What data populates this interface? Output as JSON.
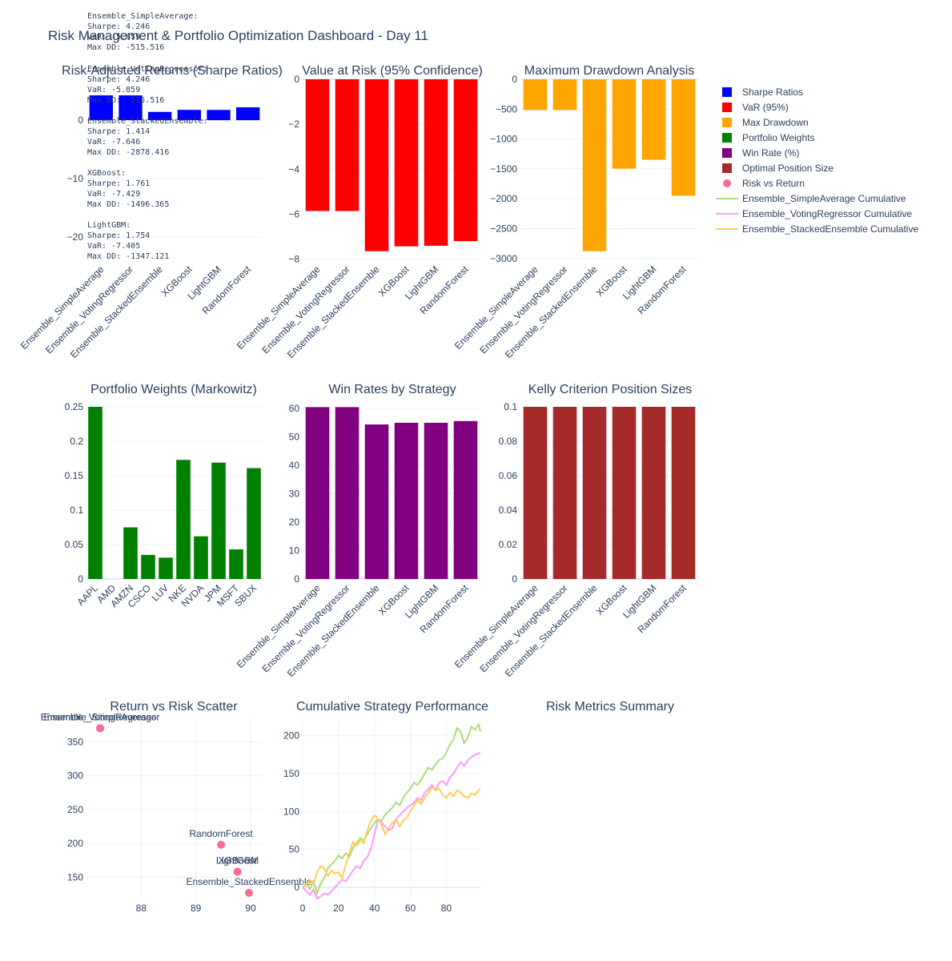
{
  "title": "Risk Management & Portfolio Optimization Dashboard - Day 11",
  "colors": {
    "sharpe": "#0000ff",
    "var": "#ff0000",
    "drawdown": "#ffa500",
    "weights": "#008000",
    "winrate": "#800080",
    "kelly": "#a52a2a",
    "scatter": "#f56e8f",
    "cum1": "#aadd77",
    "cum2": "#ff99ff",
    "cum3": "#ffcc55"
  },
  "legend": [
    {
      "label": "Sharpe Ratios",
      "kind": "box",
      "color": "#0000ff"
    },
    {
      "label": "VaR (95%)",
      "kind": "box",
      "color": "#ff0000"
    },
    {
      "label": "Max Drawdown",
      "kind": "box",
      "color": "#ffa500"
    },
    {
      "label": "Portfolio Weights",
      "kind": "box",
      "color": "#008000"
    },
    {
      "label": "Win Rate (%)",
      "kind": "box",
      "color": "#800080"
    },
    {
      "label": "Optimal Position Size",
      "kind": "box",
      "color": "#a52a2a"
    },
    {
      "label": "Risk vs Return",
      "kind": "dot",
      "color": "#f56e8f"
    },
    {
      "label": "Ensemble_SimpleAverage Cumulative",
      "kind": "line",
      "color": "#aadd77"
    },
    {
      "label": "Ensemble_VotingRegressor Cumulative",
      "kind": "line",
      "color": "#ff99ff"
    },
    {
      "label": "Ensemble_StackedEnsemble Cumulative",
      "kind": "line",
      "color": "#ffcc55"
    }
  ],
  "summary_blocks": [
    [
      "Ensemble_SimpleAverage:",
      "   Sharpe: 4.246",
      "   VaR: -5.859",
      "   Max DD: -515.516"
    ],
    [
      "Ensemble_VotingRegressor:",
      "   Sharpe: 4.246",
      "   VaR: -5.859",
      "   Max DD: -515.516"
    ],
    [
      "Ensemble_StackedEnsemble:",
      "   Sharpe: 1.414",
      "   VaR: -7.646",
      "   Max DD: -2878.416"
    ],
    [
      "XGBoost:",
      "   Sharpe: 1.761",
      "   VaR: -7.429",
      "   Max DD: -1496.365"
    ],
    [
      "LightGBM:",
      "   Sharpe: 1.754",
      "   VaR: -7.405",
      "   Max DD: -1347.121"
    ]
  ],
  "chart_data": [
    {
      "id": "sharpe",
      "type": "bar",
      "title": "Risk-Adjusted Returns (Sharpe Ratios)",
      "categories": [
        "Ensemble_SimpleAverage",
        "Ensemble_VotingRegressor",
        "Ensemble_StackedEnsemble",
        "XGBoost",
        "LightGBM",
        "RandomForest"
      ],
      "values": [
        4.246,
        4.246,
        1.414,
        1.761,
        1.754,
        2.2
      ],
      "ylim": [
        -24,
        7
      ],
      "yticks": [
        0,
        -10,
        -20
      ]
    },
    {
      "id": "var",
      "type": "bar",
      "title": "Value at Risk (95% Confidence)",
      "categories": [
        "Ensemble_SimpleAverage",
        "Ensemble_VotingRegressor",
        "Ensemble_StackedEnsemble",
        "XGBoost",
        "LightGBM",
        "RandomForest"
      ],
      "values": [
        -5.859,
        -5.859,
        -7.646,
        -7.429,
        -7.405,
        -7.2
      ],
      "ylim": [
        -8.05,
        0
      ],
      "yticks": [
        0,
        -2,
        -4,
        -6,
        -8
      ]
    },
    {
      "id": "dd",
      "type": "bar",
      "title": "Maximum Drawdown Analysis",
      "categories": [
        "Ensemble_SimpleAverage",
        "Ensemble_VotingRegressor",
        "Ensemble_StackedEnsemble",
        "XGBoost",
        "LightGBM",
        "RandomForest"
      ],
      "values": [
        -515.516,
        -515.516,
        -2878.416,
        -1496.365,
        -1347.121,
        -1950
      ],
      "ylim": [
        -3030,
        0
      ],
      "yticks": [
        0,
        -500,
        -1000,
        -1500,
        -2000,
        -2500,
        -3000
      ]
    },
    {
      "id": "weights",
      "type": "bar",
      "title": "Portfolio Weights (Markowitz)",
      "categories": [
        "AAPL",
        "AMD",
        "AMZN",
        "CSCO",
        "LUV",
        "NKE",
        "NVDA",
        "JPM",
        "MSFT",
        "SBUX"
      ],
      "values": [
        0.25,
        0.0,
        0.075,
        0.035,
        0.031,
        0.173,
        0.062,
        0.169,
        0.043,
        0.161
      ],
      "ylim": [
        0,
        0.25
      ],
      "yticks": [
        0,
        0.05,
        0.1,
        0.15,
        0.2,
        0.25
      ]
    },
    {
      "id": "winrate",
      "type": "bar",
      "title": "Win Rates by Strategy",
      "categories": [
        "Ensemble_SimpleAverage",
        "Ensemble_VotingRegressor",
        "Ensemble_StackedEnsemble",
        "XGBoost",
        "LightGBM",
        "RandomForest"
      ],
      "values": [
        60.4,
        60.4,
        54.3,
        54.9,
        54.9,
        55.5
      ],
      "ylim": [
        0,
        60.5
      ],
      "yticks": [
        0,
        10,
        20,
        30,
        40,
        50,
        60
      ]
    },
    {
      "id": "kelly",
      "type": "bar",
      "title": "Kelly Criterion Position Sizes",
      "categories": [
        "Ensemble_SimpleAverage",
        "Ensemble_VotingRegressor",
        "Ensemble_StackedEnsemble",
        "XGBoost",
        "LightGBM",
        "RandomForest"
      ],
      "values": [
        0.1,
        0.1,
        0.1,
        0.1,
        0.1,
        0.1
      ],
      "ylim": [
        0,
        0.1
      ],
      "yticks": [
        0,
        0.02,
        0.04,
        0.06,
        0.08,
        0.1
      ]
    },
    {
      "id": "scatter",
      "type": "scatter",
      "title": "Return vs Risk Scatter",
      "points": [
        {
          "label": "Ensemble_SimpleAverage",
          "x": 87.25,
          "y": 370
        },
        {
          "label": "Ensemble_VotingRegressor",
          "x": 87.25,
          "y": 370
        },
        {
          "label": "Ensemble_StackedEnsemble",
          "x": 89.97,
          "y": 127
        },
        {
          "label": "XGBoost",
          "x": 89.76,
          "y": 158
        },
        {
          "label": "LightGBM",
          "x": 89.76,
          "y": 158
        },
        {
          "label": "RandomForest",
          "x": 89.46,
          "y": 198
        }
      ],
      "xlim": [
        87.0,
        90.22
      ],
      "ylim": [
        115,
        387
      ],
      "xticks": [
        88,
        89,
        90
      ],
      "yticks": [
        150,
        200,
        250,
        300,
        350
      ]
    },
    {
      "id": "cum",
      "type": "line",
      "title": "Cumulative Strategy Performance",
      "series": [
        {
          "name": "Ensemble_SimpleAverage Cumulative",
          "color": "#aadd77",
          "x": [
            0,
            2,
            4,
            6,
            8,
            10,
            12,
            14,
            16,
            18,
            20,
            22,
            24,
            26,
            28,
            30,
            32,
            34,
            36,
            38,
            40,
            42,
            44,
            46,
            48,
            50,
            52,
            54,
            56,
            58,
            60,
            62,
            64,
            66,
            68,
            70,
            72,
            74,
            76,
            78,
            80,
            82,
            84,
            86,
            88,
            90,
            92,
            94,
            96,
            98,
            99
          ],
          "values": [
            0,
            5,
            -3,
            8,
            -8,
            5,
            12,
            25,
            30,
            35,
            42,
            38,
            45,
            40,
            52,
            58,
            65,
            62,
            70,
            78,
            85,
            90,
            88,
            96,
            100,
            105,
            112,
            108,
            118,
            125,
            130,
            138,
            135,
            142,
            150,
            158,
            155,
            162,
            168,
            170,
            178,
            188,
            195,
            210,
            205,
            190,
            198,
            212,
            208,
            215,
            205
          ]
        },
        {
          "name": "Ensemble_VotingRegressor Cumulative",
          "color": "#ff99ff",
          "x": [
            0,
            2,
            4,
            6,
            8,
            10,
            12,
            14,
            16,
            18,
            20,
            22,
            24,
            26,
            28,
            30,
            32,
            34,
            36,
            38,
            40,
            42,
            44,
            46,
            48,
            50,
            52,
            54,
            56,
            58,
            60,
            62,
            64,
            66,
            68,
            70,
            72,
            74,
            76,
            78,
            80,
            82,
            84,
            86,
            88,
            90,
            92,
            94,
            96,
            98,
            99
          ],
          "values": [
            0,
            -5,
            -10,
            -3,
            -15,
            -12,
            -8,
            -10,
            -5,
            0,
            5,
            10,
            8,
            15,
            22,
            28,
            25,
            35,
            40,
            50,
            70,
            90,
            85,
            80,
            75,
            78,
            90,
            95,
            100,
            105,
            108,
            112,
            118,
            115,
            125,
            130,
            135,
            128,
            138,
            140,
            135,
            145,
            150,
            158,
            165,
            160,
            168,
            172,
            175,
            177,
            176
          ]
        },
        {
          "name": "Ensemble_StackedEnsemble Cumulative",
          "color": "#ffcc55",
          "x": [
            0,
            2,
            4,
            6,
            8,
            10,
            12,
            14,
            16,
            18,
            20,
            22,
            24,
            26,
            28,
            30,
            32,
            34,
            36,
            38,
            40,
            42,
            44,
            46,
            48,
            50,
            52,
            54,
            56,
            58,
            60,
            62,
            64,
            66,
            68,
            70,
            72,
            74,
            76,
            78,
            80,
            82,
            84,
            86,
            88,
            90,
            92,
            94,
            96,
            98,
            99
          ],
          "values": [
            0,
            3,
            10,
            5,
            20,
            28,
            25,
            15,
            22,
            18,
            20,
            12,
            30,
            45,
            60,
            55,
            62,
            58,
            75,
            88,
            95,
            90,
            82,
            70,
            78,
            85,
            90,
            80,
            88,
            92,
            100,
            108,
            115,
            110,
            118,
            125,
            132,
            128,
            130,
            122,
            118,
            125,
            120,
            128,
            125,
            120,
            118,
            124,
            122,
            128,
            130
          ]
        }
      ],
      "xlim": [
        0,
        99
      ],
      "ylim": [
        -18,
        225
      ],
      "xticks": [
        0,
        20,
        40,
        60,
        80
      ],
      "yticks": [
        0,
        50,
        100,
        150,
        200
      ]
    }
  ],
  "panel_titles": {
    "summary": "Risk Metrics Summary"
  }
}
